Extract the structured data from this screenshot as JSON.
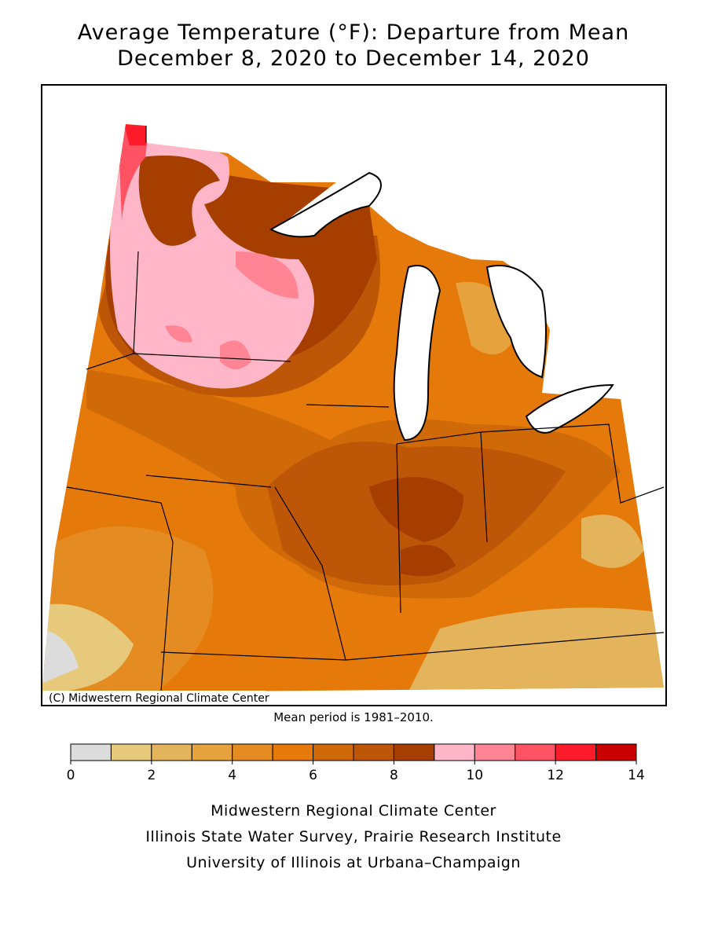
{
  "title": [
    "Average Temperature (°F): Departure from Mean",
    "December 8, 2020 to December 14, 2020"
  ],
  "map": {
    "copyright": "(C) Midwestern Regional Climate Center",
    "note": "Mean period is 1981–2010."
  },
  "legend": {
    "bins": [
      0,
      1,
      2,
      3,
      4,
      5,
      6,
      7,
      8,
      9,
      10,
      11,
      12,
      13,
      14
    ],
    "colors": [
      "#dcdcdc",
      "#e6c97a",
      "#e4b45c",
      "#e6a23c",
      "#e48c22",
      "#e57a0a",
      "#d06a08",
      "#bd5606",
      "#a63e00",
      "#ffb6c8",
      "#ff8494",
      "#ff5262",
      "#ff1c2a",
      "#c80000"
    ],
    "ticks": [
      0,
      2,
      4,
      6,
      8,
      10,
      12,
      14
    ]
  },
  "footer": [
    "Midwestern Regional Climate Center",
    "Illinois State Water Survey, Prairie Research Institute",
    "University of Illinois at Urbana–Champaign"
  ]
}
